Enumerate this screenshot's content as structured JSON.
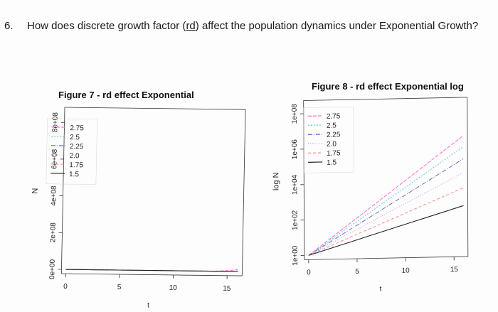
{
  "question": {
    "number": "6.",
    "text_before": "How does discrete growth factor (",
    "underlined": "rd",
    "text_after": ") affect the population dynamics under Exponential Growth?"
  },
  "series_colors": {
    "2.75": "#ff66cc",
    "2.5": "#66cccc",
    "2.25": "#6666cc",
    "2.0": "#cc99cc",
    "1.75": "#ff8888",
    "1.5": "#222222"
  },
  "chart_data": [
    {
      "type": "line",
      "title": "Figure 7 - rd effect Exponential",
      "xlabel": "t",
      "ylabel": "N",
      "x": [
        0,
        1,
        2,
        3,
        4,
        5,
        6,
        7,
        8,
        9,
        10,
        11,
        12,
        13,
        14,
        15,
        16
      ],
      "xticks": [
        "0",
        "5",
        "10",
        "15"
      ],
      "yticks": [
        "0e+00",
        "2e+08",
        "4e+08",
        "6e+08",
        "8e+08"
      ],
      "xlim": [
        0,
        16
      ],
      "ylim": [
        0,
        900000000
      ],
      "scale": "linear",
      "legend_position": "top-left",
      "series": [
        {
          "name": "2.75",
          "values": [
            1,
            2.75,
            7.56,
            20.8,
            57.2,
            157,
            433,
            1190,
            3270,
            9000,
            24800,
            68100,
            187000,
            515000,
            1420000,
            3900000,
            10700000
          ]
        },
        {
          "name": "2.5",
          "values": [
            1,
            2.5,
            6.25,
            15.6,
            39.1,
            97.7,
            244,
            610,
            1530,
            3810,
            9540,
            23800,
            59600,
            149000,
            373000,
            931000,
            2330000
          ]
        },
        {
          "name": "2.25",
          "values": [
            1,
            2.25,
            5.06,
            11.4,
            25.6,
            57.7,
            130,
            292,
            657,
            1480,
            3330,
            7480,
            16800,
            37900,
            85200,
            192000,
            431000
          ]
        },
        {
          "name": "2.0",
          "values": [
            1,
            2,
            4,
            8,
            16,
            32,
            64,
            128,
            256,
            512,
            1024,
            2048,
            4096,
            8192,
            16384,
            32768,
            65536
          ]
        },
        {
          "name": "1.75",
          "values": [
            1,
            1.75,
            3.06,
            5.36,
            9.38,
            16.4,
            28.7,
            50.3,
            88,
            154,
            270,
            471,
            825,
            1440,
            2530,
            4420,
            7740
          ]
        },
        {
          "name": "1.5",
          "values": [
            1,
            1.5,
            2.25,
            3.38,
            5.06,
            7.59,
            11.4,
            17.1,
            25.6,
            38.4,
            57.7,
            86.5,
            130,
            195,
            292,
            438,
            657
          ]
        }
      ]
    },
    {
      "type": "line",
      "title": "Figure 8 - rd effect Exponential log",
      "xlabel": "t",
      "ylabel": "log N",
      "x": [
        0,
        1,
        2,
        3,
        4,
        5,
        6,
        7,
        8,
        9,
        10,
        11,
        12,
        13,
        14,
        15,
        16
      ],
      "xticks": [
        "0",
        "5",
        "10",
        "15"
      ],
      "yticks": [
        "1e+00",
        "1e+02",
        "1e+04",
        "1e+06",
        "1e+08"
      ],
      "ylim": [
        1,
        1000000000
      ],
      "scale": "log",
      "legend_position": "top-left",
      "series_ref": "same as Figure 7"
    }
  ]
}
